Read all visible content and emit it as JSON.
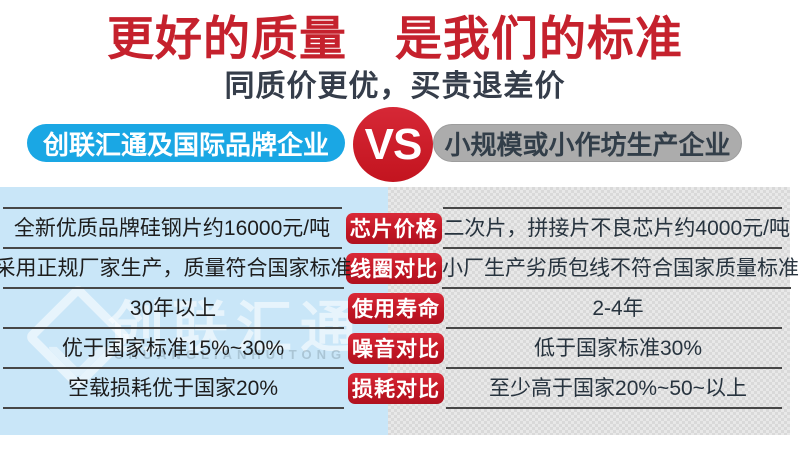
{
  "header": {
    "title": "更好的质量　是我们的标准",
    "subtitle": "同质价更优，买贵退差价"
  },
  "versus": {
    "left_label": "创联汇通及国际品牌企业",
    "vs_label": "VS",
    "right_label": "小规模或小作坊生产企业"
  },
  "table": {
    "rows": [
      {
        "left": "全新优质品牌硅钢片约16000元/吨",
        "badge": "芯片价格",
        "right": "二次片，拼接片不良芯片约4000元/吨"
      },
      {
        "left": "采用正规厂家生产，质量符合国家标准",
        "badge": "线圈对比",
        "right": "小厂生产劣质包线不符合国家质量标准"
      },
      {
        "left": "30年以上",
        "badge": "使用寿命",
        "right": "2-4年"
      },
      {
        "left": "优于国家标准15%~30%",
        "badge": "噪音对比",
        "right": "低于国家标准30%"
      },
      {
        "left": "空载损耗优于国家20%",
        "badge": "损耗对比",
        "right": "至少高于国家20%~50~以上"
      }
    ]
  },
  "watermark": {
    "text": "创联汇通",
    "latin": "CHUANGLIANHUITONG"
  },
  "colors": {
    "title_red": "#c5212d",
    "badge_red": "#c01523",
    "vs_red": "#c3141f",
    "brand_blue": "#1aa7e4",
    "left_column_bg": "#c9e6f8",
    "right_column_bg": "#dfdfdf",
    "pill_gray": "#acacac",
    "divider": "#474747"
  }
}
